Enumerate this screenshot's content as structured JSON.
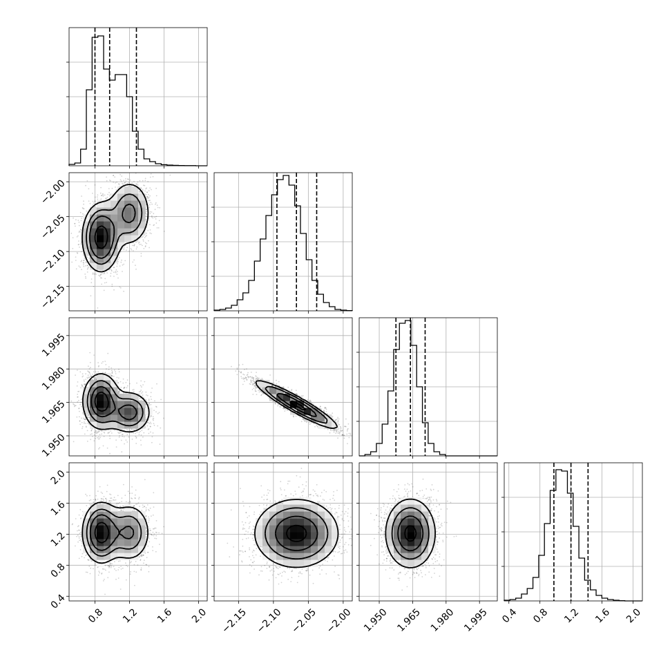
{
  "chart_data": {
    "type": "corner",
    "grid": true,
    "parameters": [
      {
        "range": [
          0.5,
          2.1
        ],
        "ticks": [
          "0.8",
          "1.2",
          "1.6",
          "2.0"
        ],
        "tick_values": [
          0.8,
          1.2,
          1.6,
          2.0
        ],
        "quantiles": [
          0.8,
          0.97,
          1.28
        ],
        "hist_edges_start": 0.5,
        "hist_bin_width": 0.0667,
        "hist_counts": [
          0.01,
          0.02,
          0.12,
          0.55,
          0.93,
          0.94,
          0.7,
          0.62,
          0.66,
          0.66,
          0.5,
          0.25,
          0.12,
          0.05,
          0.03,
          0.015,
          0.008,
          0.005,
          0.003,
          0.002,
          0.001,
          0.001,
          0.0,
          0.0
        ],
        "hist_ticks": [
          0.25,
          0.5,
          0.75
        ]
      },
      {
        "range": [
          -2.185,
          -1.987
        ],
        "ticks": [
          "−2.15",
          "−2.10",
          "−2.05",
          "−2.00"
        ],
        "tick_values": [
          -2.15,
          -2.1,
          -2.05,
          -2.0
        ],
        "quantiles": [
          -2.095,
          -2.067,
          -2.038
        ],
        "hist_edges_start": -2.185,
        "hist_bin_width": 0.00825,
        "hist_counts": [
          0.005,
          0.01,
          0.02,
          0.04,
          0.08,
          0.13,
          0.22,
          0.36,
          0.52,
          0.69,
          0.84,
          0.95,
          0.98,
          0.91,
          0.76,
          0.56,
          0.37,
          0.22,
          0.12,
          0.06,
          0.03,
          0.01,
          0.005,
          0.002
        ],
        "hist_ticks": [
          0.25,
          0.5,
          0.75
        ]
      },
      {
        "range": [
          1.941,
          2.003
        ],
        "ticks": [
          "1.950",
          "1.965",
          "1.980",
          "1.995"
        ],
        "tick_values": [
          1.95,
          1.965,
          1.98,
          1.995
        ],
        "quantiles": [
          1.9575,
          1.964,
          1.9706
        ],
        "hist_edges_start": 1.941,
        "hist_bin_width": 0.00258,
        "hist_counts": [
          0.0,
          0.01,
          0.03,
          0.09,
          0.23,
          0.47,
          0.77,
          0.96,
          0.98,
          0.8,
          0.5,
          0.24,
          0.09,
          0.03,
          0.01,
          0.0,
          0.0,
          0.0,
          0.0,
          0.0,
          0.0,
          0.0,
          0.0,
          0.0
        ],
        "hist_ticks": [
          0.25,
          0.5,
          0.75
        ]
      },
      {
        "range": [
          0.34,
          2.12
        ],
        "ticks": [
          "0.4",
          "0.8",
          "1.2",
          "1.6",
          "2.0"
        ],
        "tick_values": [
          0.4,
          0.8,
          1.2,
          1.6,
          2.0
        ],
        "quantiles": [
          0.98,
          1.2,
          1.42
        ],
        "hist_edges_start": 0.34,
        "hist_bin_width": 0.074,
        "hist_counts": [
          0.005,
          0.01,
          0.02,
          0.05,
          0.09,
          0.17,
          0.33,
          0.56,
          0.8,
          0.95,
          0.94,
          0.78,
          0.54,
          0.31,
          0.15,
          0.08,
          0.04,
          0.02,
          0.01,
          0.005,
          0.002,
          0.0,
          0.0,
          0.0
        ],
        "hist_ticks": [
          0.25,
          0.5,
          0.75
        ]
      }
    ],
    "pairs": [
      {
        "row": 1,
        "col": 0,
        "components": [
          {
            "weight": 0.6,
            "mean": [
              0.87,
              -2.08
            ],
            "sd": [
              0.11,
              0.025
            ],
            "corr": 0.0
          },
          {
            "weight": 0.4,
            "mean": [
              1.2,
              -2.045
            ],
            "sd": [
              0.13,
              0.025
            ],
            "corr": 0.0
          }
        ]
      },
      {
        "row": 2,
        "col": 0,
        "components": [
          {
            "weight": 0.6,
            "mean": [
              0.87,
              1.9655
            ],
            "sd": [
              0.11,
              0.0065
            ],
            "corr": 0.0
          },
          {
            "weight": 0.4,
            "mean": [
              1.2,
              1.9605
            ],
            "sd": [
              0.13,
              0.005
            ],
            "corr": 0.0
          }
        ]
      },
      {
        "row": 2,
        "col": 1,
        "components": [
          {
            "weight": 1.0,
            "mean": [
              -2.067,
              1.964
            ],
            "sd": [
              0.03,
              0.0055
            ],
            "corr": -0.93
          }
        ]
      },
      {
        "row": 3,
        "col": 0,
        "components": [
          {
            "weight": 0.6,
            "mean": [
              0.87,
              1.22
            ],
            "sd": [
              0.11,
              0.2
            ],
            "corr": 0.0
          },
          {
            "weight": 0.4,
            "mean": [
              1.2,
              1.22
            ],
            "sd": [
              0.13,
              0.2
            ],
            "corr": 0.0
          }
        ]
      },
      {
        "row": 3,
        "col": 1,
        "components": [
          {
            "weight": 1.0,
            "mean": [
              -2.067,
              1.21
            ],
            "sd": [
              0.03,
              0.22
            ],
            "corr": 0.0
          }
        ]
      },
      {
        "row": 3,
        "col": 2,
        "components": [
          {
            "weight": 1.0,
            "mean": [
              1.964,
              1.21
            ],
            "sd": [
              0.0055,
              0.22
            ],
            "corr": 0.0
          }
        ]
      }
    ]
  }
}
